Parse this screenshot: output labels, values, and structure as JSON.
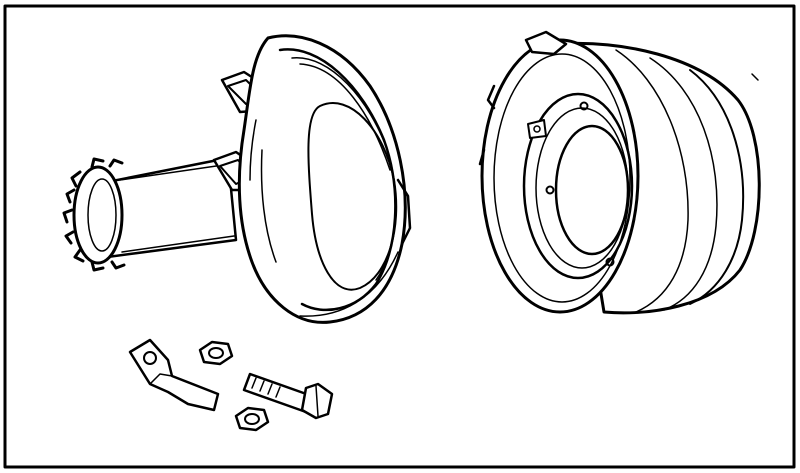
{
  "figure": {
    "parts": [
      {
        "id": "headlamp-body-assembly"
      },
      {
        "id": "light-unit-rim-assembly"
      },
      {
        "id": "mounting-bracket"
      },
      {
        "id": "nut"
      },
      {
        "id": "bolt"
      }
    ],
    "colors": {
      "ink": "#000000",
      "paper": "#ffffff"
    }
  }
}
